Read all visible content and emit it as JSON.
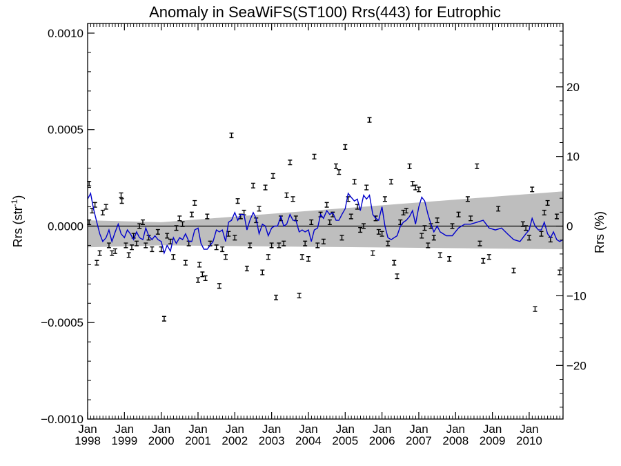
{
  "chart_data": {
    "type": "scatter",
    "title": "Anomaly in SeaWiFS(ST100) Rrs(443) for Eutrophic",
    "ylabel_left": {
      "main": "Rrs (str",
      "sup": "-1",
      "end": ")"
    },
    "ylabel_right": "Rrs (%)",
    "x_range": [
      1998.0,
      2010.92
    ],
    "ylim_left": [
      -0.001,
      0.00105
    ],
    "ylim_right": [
      -27.7,
      29.1
    ],
    "yticks_left": [
      {
        "value": 0.001,
        "label": "0.0010"
      },
      {
        "value": 0.0005,
        "label": "0.0005"
      },
      {
        "value": 0.0,
        "label": "0.0000"
      },
      {
        "value": -0.0005,
        "label": "−0.0005"
      },
      {
        "value": -0.001,
        "label": "−0.0010"
      }
    ],
    "yticks_right": [
      {
        "value": 20,
        "label": "20"
      },
      {
        "value": 10,
        "label": "10"
      },
      {
        "value": 0,
        "label": "0"
      },
      {
        "value": -10,
        "label": "−10"
      },
      {
        "value": -20,
        "label": "−20"
      }
    ],
    "xticks": [
      {
        "value": 1998.0,
        "month": "Jan",
        "year": "1998"
      },
      {
        "value": 1999.0,
        "month": "Jan",
        "year": "1999"
      },
      {
        "value": 2000.0,
        "month": "Jan",
        "year": "2000"
      },
      {
        "value": 2001.0,
        "month": "Jan",
        "year": "2001"
      },
      {
        "value": 2002.0,
        "month": "Jan",
        "year": "2002"
      },
      {
        "value": 2003.0,
        "month": "Jan",
        "year": "2003"
      },
      {
        "value": 2004.0,
        "month": "Jan",
        "year": "2004"
      },
      {
        "value": 2005.0,
        "month": "Jan",
        "year": "2005"
      },
      {
        "value": 2006.0,
        "month": "Jan",
        "year": "2006"
      },
      {
        "value": 2007.0,
        "month": "Jan",
        "year": "2007"
      },
      {
        "value": 2008.0,
        "month": "Jan",
        "year": "2008"
      },
      {
        "value": 2009.0,
        "month": "Jan",
        "year": "2009"
      },
      {
        "value": 2010.0,
        "month": "Jan",
        "year": "2010"
      }
    ],
    "zero_line": 0.0,
    "uncertainty_band": {
      "x": [
        1998.0,
        2000.0,
        2010.92
      ],
      "upper": [
        3e-05,
        2e-05,
        0.00018
      ],
      "lower": [
        -0.00011,
        -0.0001,
        -0.00012
      ],
      "color": "#bebebe"
    },
    "error_bar_halfwidth": 1.2e-05,
    "series": [
      {
        "kind": "monthly_anomaly_points",
        "color": "#000000",
        "points": [
          [
            1998.04,
            0.00022
          ],
          [
            1998.04,
            2e-05
          ],
          [
            1998.12,
            8e-05
          ],
          [
            1998.2,
            0.00011
          ],
          [
            1998.25,
            -0.00019
          ],
          [
            1998.33,
            -0.00014
          ],
          [
            1998.41,
            7e-05
          ],
          [
            1998.5,
            0.0001
          ],
          [
            1998.58,
            -0.0001
          ],
          [
            1998.66,
            -0.00014
          ],
          [
            1998.75,
            -0.00013
          ],
          [
            1998.91,
            0.00016
          ],
          [
            1998.93,
            0.00013
          ],
          [
            1999.04,
            -0.0001
          ],
          [
            1999.12,
            -0.00015
          ],
          [
            1999.2,
            -0.00011
          ],
          [
            1999.25,
            -5e-05
          ],
          [
            1999.33,
            -9e-05
          ],
          [
            1999.41,
            0.0
          ],
          [
            1999.5,
            2e-05
          ],
          [
            1999.58,
            -0.0001
          ],
          [
            1999.66,
            -6e-05
          ],
          [
            1999.75,
            -0.00012
          ],
          [
            1999.91,
            -3e-05
          ],
          [
            2000.0,
            -0.00012
          ],
          [
            2000.08,
            -0.00048
          ],
          [
            2000.16,
            -5e-05
          ],
          [
            2000.25,
            -8e-05
          ],
          [
            2000.33,
            -0.00016
          ],
          [
            2000.41,
            -1e-05
          ],
          [
            2000.5,
            4e-05
          ],
          [
            2000.58,
            1e-05
          ],
          [
            2000.66,
            -0.00019
          ],
          [
            2000.75,
            -9e-05
          ],
          [
            2000.83,
            6e-05
          ],
          [
            2000.91,
            0.00012
          ],
          [
            2001.0,
            -0.00028
          ],
          [
            2001.04,
            -0.0002
          ],
          [
            2001.12,
            -0.00025
          ],
          [
            2001.2,
            -0.00027
          ],
          [
            2001.25,
            5e-05
          ],
          [
            2001.33,
            -9e-05
          ],
          [
            2001.5,
            -0.00011
          ],
          [
            2001.58,
            -0.00031
          ],
          [
            2001.66,
            -0.00012
          ],
          [
            2001.75,
            -0.00016
          ],
          [
            2001.83,
            -4e-05
          ],
          [
            2001.91,
            0.00047
          ],
          [
            2002.0,
            -6e-05
          ],
          [
            2002.08,
            0.00013
          ],
          [
            2002.16,
            5e-05
          ],
          [
            2002.25,
            7e-05
          ],
          [
            2002.33,
            -0.00022
          ],
          [
            2002.41,
            -0.0001
          ],
          [
            2002.5,
            0.00021
          ],
          [
            2002.58,
            3e-05
          ],
          [
            2002.66,
            9e-05
          ],
          [
            2002.75,
            -0.00024
          ],
          [
            2002.83,
            0.0002
          ],
          [
            2002.91,
            -0.00016
          ],
          [
            2003.0,
            -0.0001
          ],
          [
            2003.04,
            0.00026
          ],
          [
            2003.12,
            -0.00037
          ],
          [
            2003.2,
            -0.0001
          ],
          [
            2003.25,
            4e-05
          ],
          [
            2003.33,
            -9e-05
          ],
          [
            2003.41,
            0.00016
          ],
          [
            2003.5,
            0.00033
          ],
          [
            2003.58,
            0.00014
          ],
          [
            2003.66,
            4e-05
          ],
          [
            2003.75,
            -0.00036
          ],
          [
            2003.83,
            -0.00016
          ],
          [
            2003.91,
            -9e-05
          ],
          [
            2004.0,
            -0.00017
          ],
          [
            2004.08,
            2e-05
          ],
          [
            2004.16,
            0.00036
          ],
          [
            2004.25,
            -0.0001
          ],
          [
            2004.33,
            6e-05
          ],
          [
            2004.41,
            -8e-05
          ],
          [
            2004.5,
            0.00011
          ],
          [
            2004.58,
            2e-05
          ],
          [
            2004.66,
            6e-05
          ],
          [
            2004.75,
            0.00031
          ],
          [
            2004.83,
            0.00028
          ],
          [
            2004.91,
            -6e-05
          ],
          [
            2005.0,
            0.00041
          ],
          [
            2005.08,
            0.00014
          ],
          [
            2005.16,
            5e-05
          ],
          [
            2005.25,
            0.00023
          ],
          [
            2005.33,
            0.0001
          ],
          [
            2005.41,
            -2e-05
          ],
          [
            2005.5,
            0.0
          ],
          [
            2005.58,
            0.0002
          ],
          [
            2005.66,
            0.00055
          ],
          [
            2005.75,
            -0.00014
          ],
          [
            2005.83,
            4e-05
          ],
          [
            2005.91,
            -3e-05
          ],
          [
            2006.0,
            -4e-05
          ],
          [
            2006.08,
            0.00014
          ],
          [
            2006.16,
            -9e-05
          ],
          [
            2006.25,
            0.00023
          ],
          [
            2006.33,
            -0.00019
          ],
          [
            2006.41,
            -0.00026
          ],
          [
            2006.5,
            2e-05
          ],
          [
            2006.58,
            7e-05
          ],
          [
            2006.66,
            8e-05
          ],
          [
            2006.75,
            0.00031
          ],
          [
            2006.83,
            0.00022
          ],
          [
            2006.91,
            0.0002
          ],
          [
            2007.0,
            0.00019
          ],
          [
            2007.08,
            -5e-05
          ],
          [
            2007.16,
            -1e-05
          ],
          [
            2007.25,
            -0.0001
          ],
          [
            2007.33,
            0.0
          ],
          [
            2007.41,
            -6e-05
          ],
          [
            2007.5,
            3e-05
          ],
          [
            2007.58,
            -0.00015
          ],
          [
            2007.83,
            -0.00017
          ],
          [
            2007.91,
            0.0
          ],
          [
            2008.08,
            6e-05
          ],
          [
            2008.33,
            0.00014
          ],
          [
            2008.41,
            4e-05
          ],
          [
            2008.58,
            0.00031
          ],
          [
            2008.66,
            -9e-05
          ],
          [
            2008.75,
            -0.00018
          ],
          [
            2008.91,
            -0.00016
          ],
          [
            2009.16,
            9e-05
          ],
          [
            2009.58,
            -0.00023
          ],
          [
            2009.83,
            1e-05
          ],
          [
            2009.91,
            -1e-05
          ],
          [
            2010.0,
            -6e-05
          ],
          [
            2010.08,
            0.00019
          ],
          [
            2010.16,
            -0.00043
          ],
          [
            2010.33,
            -4e-05
          ],
          [
            2010.41,
            7e-05
          ],
          [
            2010.5,
            0.00012
          ],
          [
            2010.58,
            -7e-05
          ],
          [
            2010.75,
            5e-05
          ],
          [
            2010.83,
            -0.00024
          ]
        ]
      },
      {
        "kind": "running_mean",
        "color": "#0000cc",
        "x": [
          1998.0,
          1998.08,
          1998.16,
          1998.25,
          1998.33,
          1998.41,
          1998.5,
          1998.58,
          1998.66,
          1998.75,
          1998.83,
          1998.91,
          1999.0,
          1999.08,
          1999.16,
          1999.25,
          1999.33,
          1999.41,
          1999.5,
          1999.58,
          1999.66,
          1999.75,
          1999.83,
          1999.91,
          2000.0,
          2000.08,
          2000.16,
          2000.25,
          2000.33,
          2000.41,
          2000.5,
          2000.58,
          2000.66,
          2000.75,
          2000.83,
          2000.91,
          2001.0,
          2001.08,
          2001.16,
          2001.25,
          2001.33,
          2001.41,
          2001.5,
          2001.58,
          2001.66,
          2001.75,
          2001.83,
          2001.91,
          2002.0,
          2002.08,
          2002.16,
          2002.25,
          2002.33,
          2002.41,
          2002.5,
          2002.58,
          2002.66,
          2002.75,
          2002.83,
          2002.91,
          2003.0,
          2003.08,
          2003.16,
          2003.25,
          2003.33,
          2003.41,
          2003.5,
          2003.58,
          2003.66,
          2003.75,
          2003.83,
          2003.91,
          2004.0,
          2004.08,
          2004.16,
          2004.25,
          2004.33,
          2004.41,
          2004.5,
          2004.58,
          2004.66,
          2004.75,
          2004.83,
          2004.91,
          2005.0,
          2005.08,
          2005.16,
          2005.25,
          2005.33,
          2005.41,
          2005.5,
          2005.58,
          2005.66,
          2005.75,
          2005.83,
          2005.91,
          2006.0,
          2006.08,
          2006.16,
          2006.25,
          2006.33,
          2006.41,
          2006.5,
          2006.58,
          2006.66,
          2006.75,
          2006.83,
          2006.91,
          2007.0,
          2007.08,
          2007.16,
          2007.25,
          2007.33,
          2007.41,
          2007.5,
          2007.58,
          2007.75,
          2007.91,
          2008.08,
          2008.25,
          2008.41,
          2008.58,
          2008.75,
          2008.91,
          2009.08,
          2009.25,
          2009.41,
          2009.58,
          2009.75,
          2009.91,
          2010.0,
          2010.08,
          2010.16,
          2010.25,
          2010.33,
          2010.41,
          2010.5,
          2010.58,
          2010.66,
          2010.75,
          2010.83,
          2010.92
        ],
        "y": [
          0.00014,
          0.00017,
          9e-05,
          2e-05,
          -4e-05,
          -8e-05,
          -6e-05,
          -2e-05,
          -8e-05,
          -3e-05,
          1e-05,
          -4e-05,
          -6e-05,
          -2e-05,
          -4e-05,
          -7e-05,
          -3e-05,
          -6e-05,
          -7e-05,
          -1e-05,
          -5e-05,
          -7e-05,
          -5e-05,
          -7e-05,
          -8e-05,
          -0.00014,
          -0.0001,
          -0.00013,
          -6e-05,
          -9e-05,
          -6e-05,
          -7e-05,
          -4e-05,
          -8e-05,
          -8e-05,
          -2e-05,
          -1e-05,
          -9e-05,
          -0.00012,
          -0.00012,
          -0.0001,
          -8e-05,
          -2e-05,
          -3e-05,
          -2e-05,
          -8e-05,
          2e-05,
          3e-05,
          7e-05,
          3e-05,
          6e-05,
          6e-05,
          -2e-05,
          3e-05,
          7e-05,
          4e-05,
          -4e-05,
          1e-05,
          0.0,
          -5e-05,
          -1e-05,
          0.0,
          0.0,
          5e-05,
          0.0,
          1e-05,
          6e-05,
          3e-05,
          3e-05,
          -3e-05,
          -2e-05,
          -3e-05,
          -2e-05,
          -8e-05,
          -2e-05,
          -1e-05,
          6e-05,
          4e-05,
          8e-05,
          6e-05,
          7e-05,
          3e-05,
          3e-05,
          6e-05,
          9e-05,
          0.00017,
          0.00015,
          0.00013,
          0.00014,
          8e-05,
          0.00016,
          0.00014,
          0.00016,
          6e-05,
          4e-05,
          3e-05,
          0.0001,
          0.0,
          -6e-05,
          -7e-05,
          -6e-05,
          -5e-05,
          0.0,
          2e-05,
          3e-05,
          5e-05,
          8e-05,
          1e-05,
          0.0001,
          0.00015,
          0.00013,
          6e-05,
          1e-05,
          -3e-05,
          0.0,
          -3e-05,
          -5e-05,
          -5e-05,
          -1e-05,
          1e-05,
          1e-05,
          2e-05,
          3e-05,
          -1e-05,
          -2e-05,
          -1e-05,
          -4e-05,
          -7e-05,
          -8e-05,
          -4e-05,
          -2e-05,
          4e-05,
          0.0,
          -2e-05,
          -2e-05,
          2e-05,
          -4e-05,
          -6e-05,
          -3e-05,
          -7e-05,
          -8e-05,
          -7e-05
        ]
      }
    ]
  }
}
